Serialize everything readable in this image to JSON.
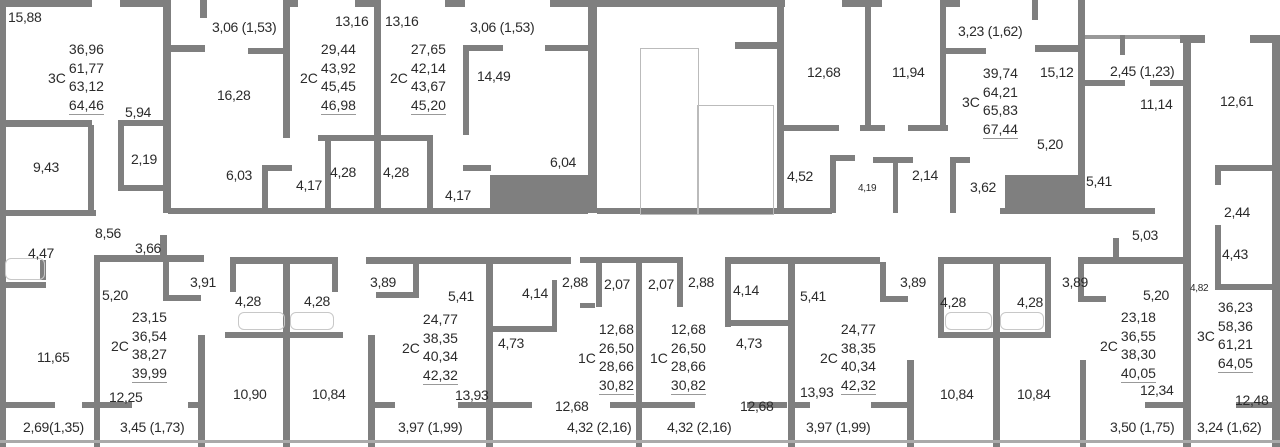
{
  "colors": {
    "wall": "#7f7f7f",
    "text": "#2b2b2b",
    "background": "#ffffff"
  },
  "rooms": [
    "15,88",
    "5,94",
    "9,43",
    "2,19",
    "3,06 (1,53)",
    "16,28",
    "6,03",
    "13,16",
    "4,17",
    "4,28",
    "13,16",
    "4,28",
    "3,06 (1,53)",
    "14,49",
    "4,17",
    "6,04",
    "12,68",
    "11,94",
    "3,23 (1,62)",
    "15,12",
    "5,20",
    "4,52",
    "4,19",
    "2,14",
    "3,62",
    "2,45 (1,23)",
    "11,14",
    "12,61",
    "5,41",
    "2,44",
    "4,47",
    "8,56",
    "3,66",
    "5,20",
    "3,91",
    "4,28",
    "4,28",
    "3,89",
    "5,41",
    "4,14",
    "2,88",
    "2,07",
    "2,07",
    "2,88",
    "4,14",
    "5,41",
    "3,89",
    "4,28",
    "4,28",
    "3,89",
    "5,20",
    "5,03",
    "4,43",
    "4,82",
    "11,65",
    "12,25",
    "10,90",
    "10,84",
    "13,93",
    "4,73",
    "12,68",
    "12,68",
    "4,73",
    "13,93",
    "10,84",
    "10,84",
    "12,34",
    "12,48"
  ],
  "balconies": [
    "2,69(1,35)",
    "3,45 (1,73)",
    "3,97 (1,99)",
    "4,32 (2,16)",
    "4,32 (2,16)",
    "3,97 (1,99)",
    "3,50 (1,75)",
    "3,24 (1,62)"
  ],
  "apartments": [
    {
      "type": "3С",
      "areas": [
        "36,96",
        "61,77",
        "63,12",
        "64,46"
      ]
    },
    {
      "type": "2С",
      "areas": [
        "29,44",
        "43,92",
        "45,45",
        "46,98"
      ]
    },
    {
      "type": "2С",
      "areas": [
        "27,65",
        "42,14",
        "43,67",
        "45,20"
      ]
    },
    {
      "type": "3С",
      "areas": [
        "39,74",
        "64,21",
        "65,83",
        "67,44"
      ]
    },
    {
      "type": "2С",
      "areas": [
        "23,15",
        "36,54",
        "38,27",
        "39,99"
      ]
    },
    {
      "type": "2С",
      "areas": [
        "24,77",
        "38,35",
        "40,34",
        "42,32"
      ]
    },
    {
      "type": "1С",
      "areas": [
        "12,68",
        "26,50",
        "28,66",
        "30,82"
      ]
    },
    {
      "type": "1С",
      "areas": [
        "12,68",
        "26,50",
        "28,66",
        "30,82"
      ]
    },
    {
      "type": "2С",
      "areas": [
        "24,77",
        "38,35",
        "40,34",
        "42,32"
      ]
    },
    {
      "type": "2С",
      "areas": [
        "23,18",
        "36,55",
        "38,30",
        "40,05"
      ]
    },
    {
      "type": "3С",
      "areas": [
        "36,23",
        "58,36",
        "61,21",
        "64,05"
      ]
    }
  ]
}
